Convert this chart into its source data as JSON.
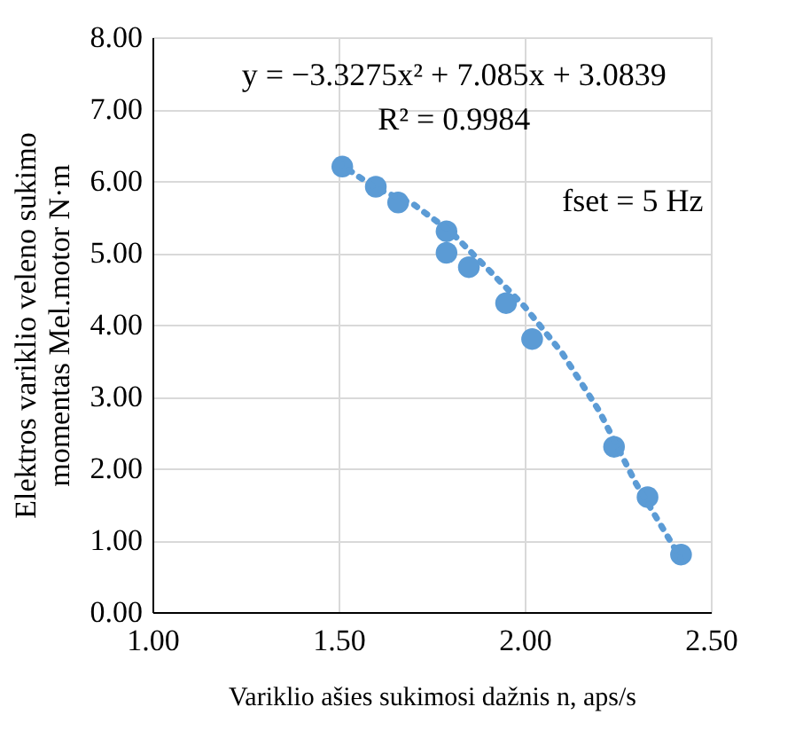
{
  "chart_data": {
    "type": "scatter",
    "xlabel": "Variklio ašies sukimosi dažnis n, aps/s",
    "ylabel": "Elektros variklio veleno sukimo\nmomentas Mel.motor N·m",
    "series": [
      {
        "color": "#5b9bd5",
        "marker": "circle",
        "x": [
          1.51,
          1.6,
          1.66,
          1.79,
          1.79,
          1.85,
          1.95,
          2.02,
          2.24,
          2.33,
          2.42
        ],
        "values": [
          6.2,
          5.92,
          5.7,
          5.3,
          5.0,
          4.8,
          4.3,
          3.8,
          2.3,
          1.6,
          0.8
        ]
      },
      {
        "type": "line",
        "color": "#5b9bd5",
        "line_style": "dotted",
        "x": [
          1.5,
          1.6,
          1.7,
          1.8,
          1.9,
          2.0,
          2.1,
          2.2,
          2.3,
          2.42
        ],
        "values": [
          6.25,
          5.9,
          5.68,
          5.3,
          4.78,
          4.25,
          3.61,
          2.8,
          1.78,
          0.74
        ]
      }
    ],
    "xlim": [
      1.0,
      2.5
    ],
    "xticks": [
      {
        "value": 1,
        "label": "1.00"
      },
      {
        "value": 1.5,
        "label": "1.50"
      },
      {
        "value": 2,
        "label": "2.00"
      },
      {
        "value": 2.5,
        "label": "2.50"
      }
    ],
    "ylim": [
      0,
      8
    ],
    "yticks": [
      {
        "value": 0,
        "label": "0.00"
      },
      {
        "value": 1,
        "label": "1.00"
      },
      {
        "value": 2,
        "label": "2.00"
      },
      {
        "value": 3,
        "label": "3.00"
      },
      {
        "value": 4,
        "label": "4.00"
      },
      {
        "value": 5,
        "label": "5.00"
      },
      {
        "value": 6,
        "label": "6.00"
      },
      {
        "value": 7,
        "label": "7.00"
      },
      {
        "value": 8,
        "label": "8.00"
      }
    ],
    "grid": true,
    "annotations": [
      "y = −3.3275x² + 7.085x + 3.0839",
      "R² = 0.9984",
      "fset = 5 Hz"
    ]
  }
}
